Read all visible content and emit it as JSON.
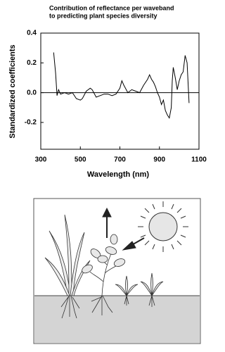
{
  "chart_data": {
    "type": "line",
    "title": [
      "Contribution of reflectance per waveband",
      "to predicting plant species diversity"
    ],
    "x_label": "Wavelength (nm)",
    "y_label": "Standardized coefficients",
    "x": [
      365,
      375,
      382,
      390,
      400,
      420,
      440,
      460,
      480,
      500,
      510,
      530,
      550,
      560,
      580,
      600,
      620,
      640,
      660,
      680,
      700,
      710,
      720,
      740,
      760,
      780,
      800,
      820,
      840,
      850,
      860,
      870,
      880,
      890,
      900,
      910,
      920,
      930,
      940,
      950,
      960,
      965,
      970,
      980,
      990,
      1000,
      1010,
      1020,
      1030,
      1040,
      1050
    ],
    "values": [
      0.27,
      0.13,
      -0.02,
      0.02,
      -0.01,
      0.0,
      -0.01,
      0.0,
      -0.04,
      -0.05,
      -0.04,
      0.01,
      0.03,
      0.02,
      -0.03,
      -0.02,
      -0.01,
      -0.01,
      -0.02,
      -0.01,
      0.03,
      0.08,
      0.05,
      0.0,
      0.02,
      0.01,
      0.0,
      0.05,
      0.09,
      0.12,
      0.09,
      0.07,
      0.04,
      0.0,
      -0.03,
      -0.08,
      -0.05,
      -0.12,
      -0.15,
      -0.17,
      -0.1,
      0.08,
      0.17,
      0.1,
      0.02,
      0.08,
      0.12,
      0.14,
      0.25,
      0.2,
      -0.07
    ],
    "color": "#000000",
    "xlim": [
      300,
      1100
    ],
    "xticks": [
      300,
      500,
      700,
      900,
      1100
    ],
    "ylim": [
      -0.38,
      0.4
    ],
    "yticks": [
      0.4,
      0.2,
      {
        "value": 0,
        "label": "0.0"
      },
      -0.2
    ],
    "zero_line": true
  }
}
